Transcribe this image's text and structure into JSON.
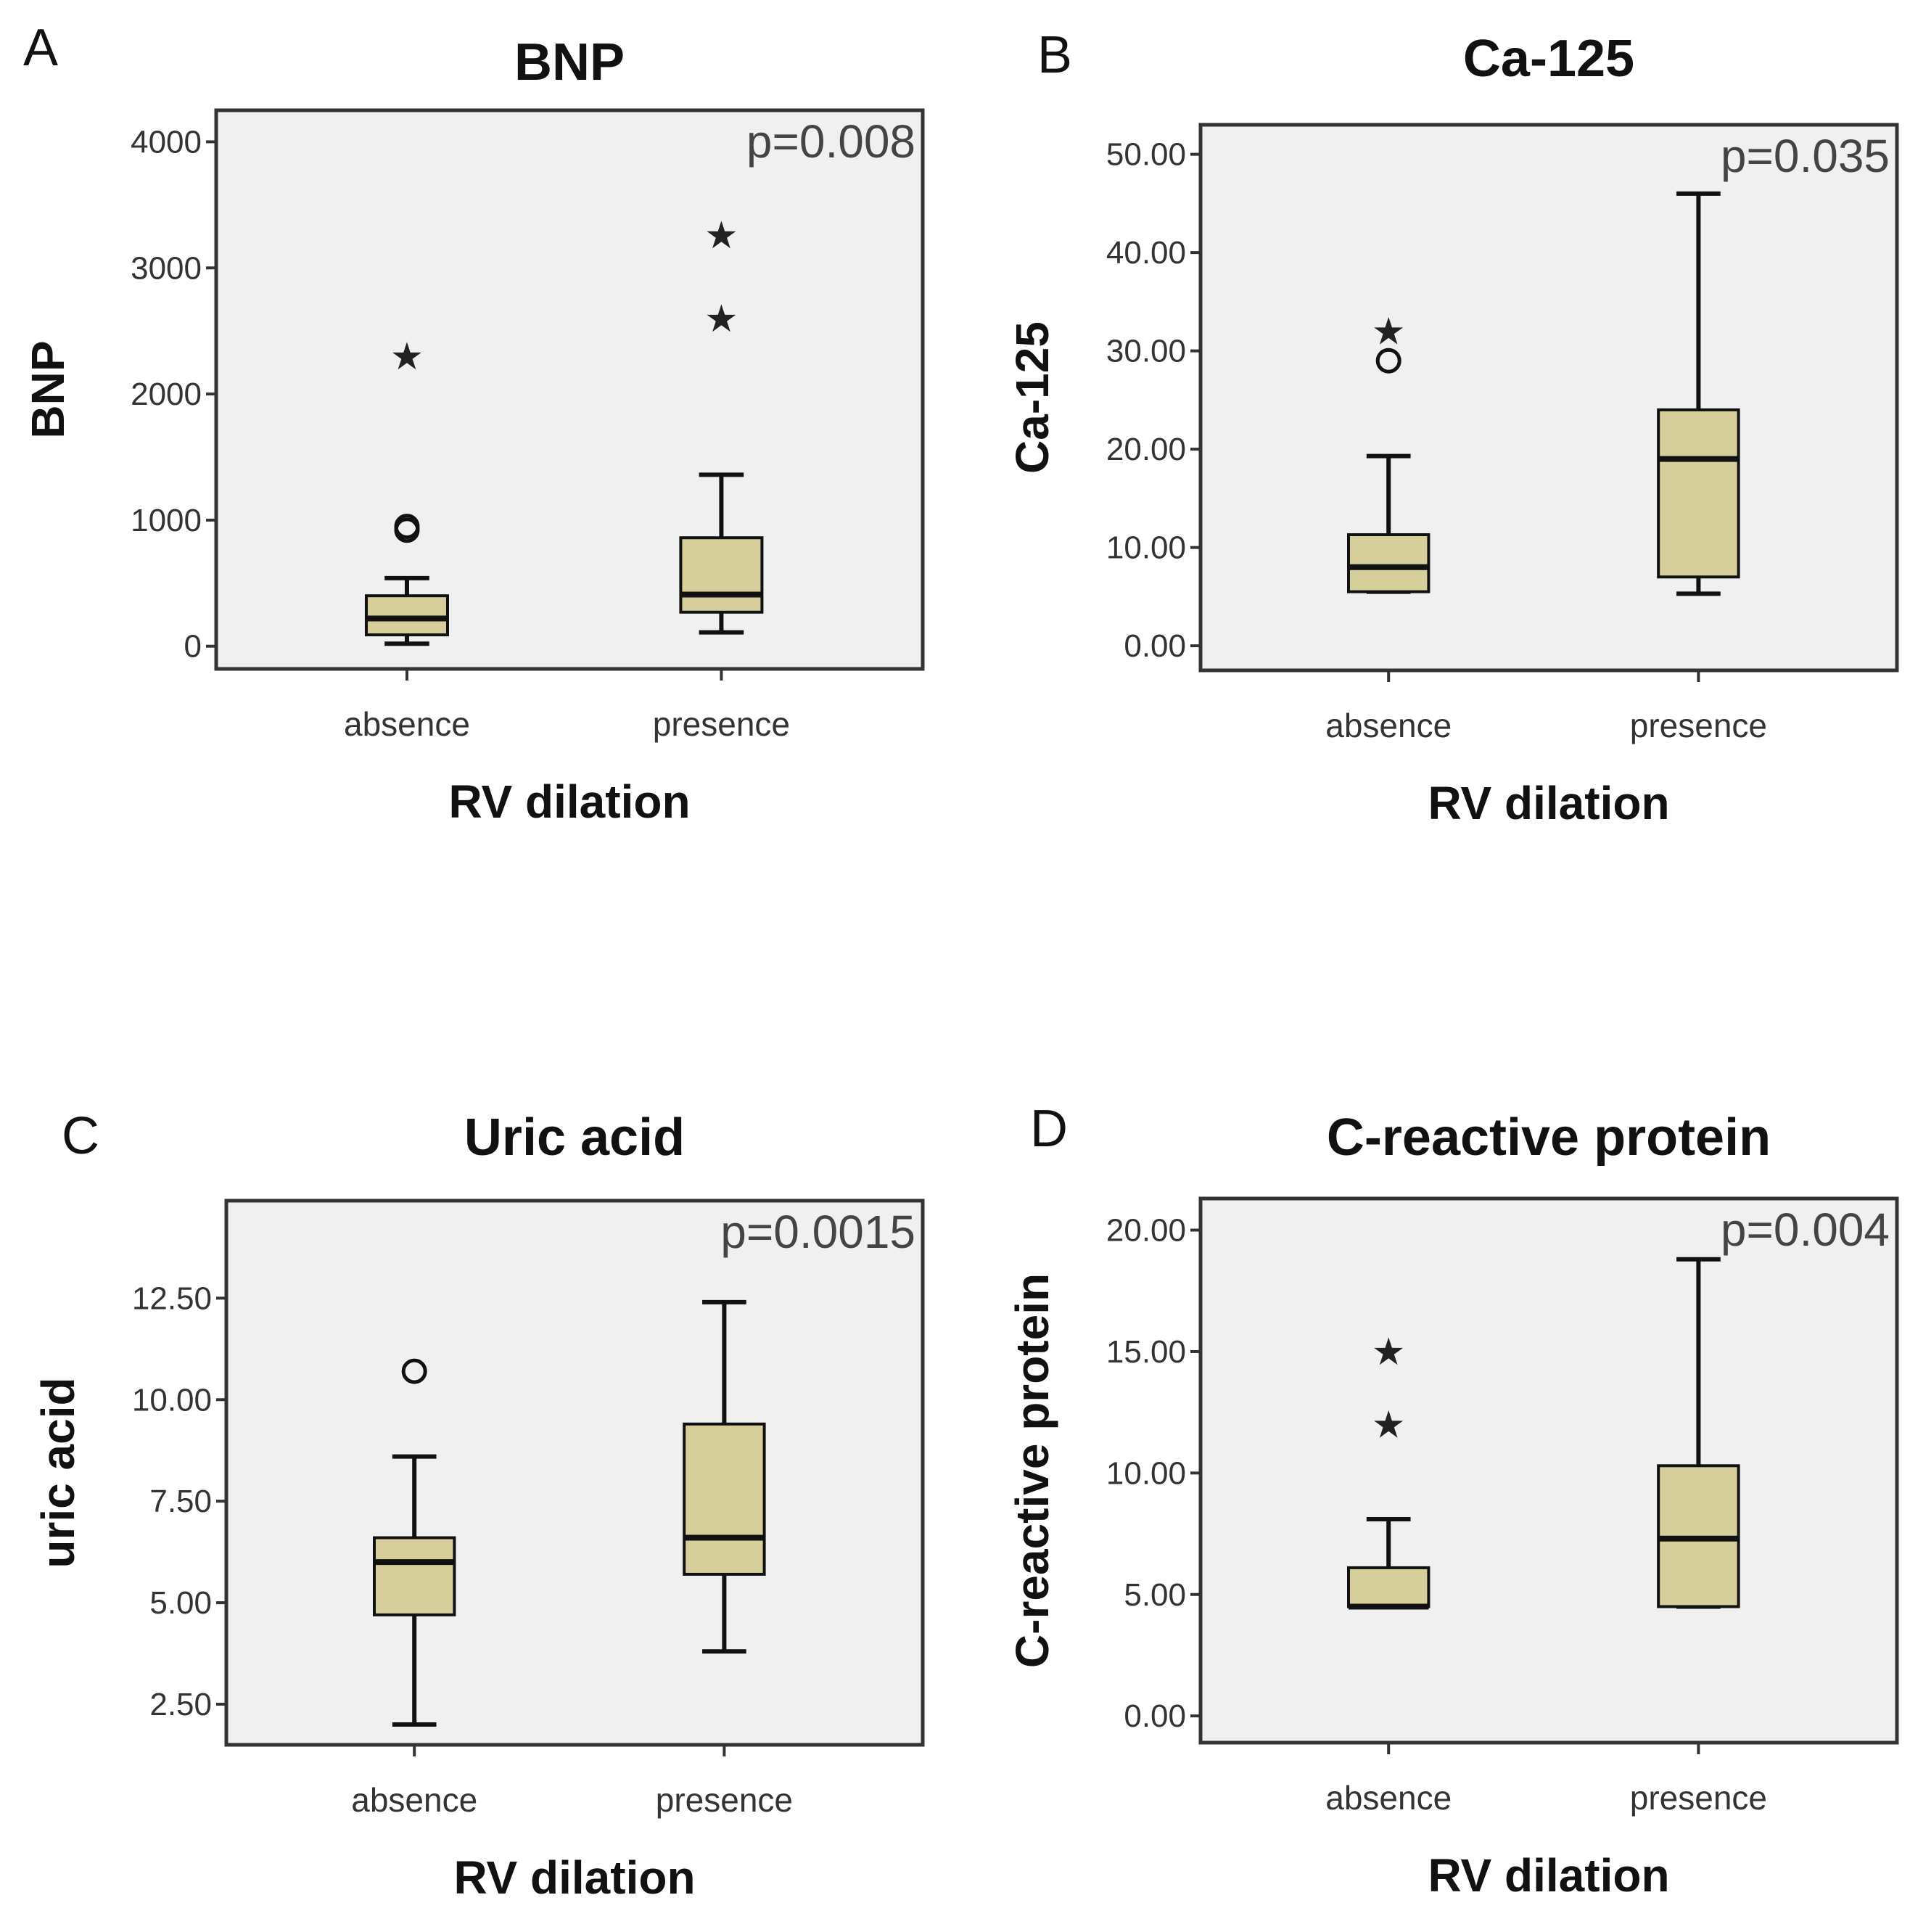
{
  "chart_data": [
    {
      "type": "boxplot",
      "panel": "A",
      "title": "BNP",
      "xlabel": "RV dilation",
      "ylabel": "BNP",
      "annotation": "p=0.008",
      "categories": [
        "absence",
        "presence"
      ],
      "ylim": [
        -180,
        4250
      ],
      "yticks": [
        0,
        1000,
        2000,
        3000,
        4000
      ],
      "ytick_labels": [
        "0",
        "1000",
        "2000",
        "3000",
        "4000"
      ],
      "boxes": [
        {
          "whisker_low": 20,
          "q1": 90,
          "median": 220,
          "q3": 400,
          "whisker_high": 540,
          "outliers": [
            {
              "value": 920,
              "marker": "circle"
            },
            {
              "value": 950,
              "marker": "circle"
            },
            {
              "value": 2300,
              "marker": "star"
            }
          ]
        },
        {
          "whisker_low": 110,
          "q1": 270,
          "median": 410,
          "q3": 860,
          "whisker_high": 1360,
          "outliers": [
            {
              "value": 2600,
              "marker": "star"
            },
            {
              "value": 3260,
              "marker": "star"
            }
          ]
        }
      ]
    },
    {
      "type": "boxplot",
      "panel": "B",
      "title": "Ca-125",
      "xlabel": "RV dilation",
      "ylabel": "Ca-125",
      "annotation": "p=0.035",
      "categories": [
        "absence",
        "presence"
      ],
      "ylim": [
        -2.5,
        53
      ],
      "yticks": [
        0,
        10,
        20,
        30,
        40,
        50
      ],
      "ytick_labels": [
        "0.00",
        "10.00",
        "20.00",
        "30.00",
        "40.00",
        "50.00"
      ],
      "boxes": [
        {
          "whisker_low": 5.5,
          "q1": 5.5,
          "median": 8.0,
          "q3": 11.3,
          "whisker_high": 19.3,
          "outliers": [
            {
              "value": 29.0,
              "marker": "circle"
            },
            {
              "value": 32.0,
              "marker": "star"
            }
          ]
        },
        {
          "whisker_low": 5.3,
          "q1": 7.0,
          "median": 19.0,
          "q3": 24.0,
          "whisker_high": 46.0,
          "outliers": []
        }
      ]
    },
    {
      "type": "boxplot",
      "panel": "C",
      "title": "Uric acid",
      "xlabel": "RV dilation",
      "ylabel": "uric acid",
      "annotation": "p=0.0015",
      "categories": [
        "absence",
        "presence"
      ],
      "ylim": [
        1.5,
        14.9
      ],
      "yticks": [
        2.5,
        5,
        7.5,
        10,
        12.5
      ],
      "ytick_labels": [
        "2.50",
        "5.00",
        "7.50",
        "10.00",
        "12.50"
      ],
      "boxes": [
        {
          "whisker_low": 2.0,
          "q1": 4.7,
          "median": 6.0,
          "q3": 6.6,
          "whisker_high": 8.6,
          "outliers": [
            {
              "value": 10.7,
              "marker": "circle"
            }
          ]
        },
        {
          "whisker_low": 3.8,
          "q1": 5.7,
          "median": 6.6,
          "q3": 9.4,
          "whisker_high": 12.4,
          "outliers": []
        }
      ]
    },
    {
      "type": "boxplot",
      "panel": "D",
      "title": "C-reactive protein",
      "xlabel": "RV dilation",
      "ylabel": "C-reactive protein",
      "annotation": "p=0.004",
      "categories": [
        "absence",
        "presence"
      ],
      "ylim": [
        -1.1,
        21.3
      ],
      "yticks": [
        0,
        5,
        10,
        15,
        20
      ],
      "ytick_labels": [
        "0.00",
        "5.00",
        "10.00",
        "15.00",
        "20.00"
      ],
      "boxes": [
        {
          "whisker_low": 4.5,
          "q1": 4.5,
          "median": 4.5,
          "q3": 6.1,
          "whisker_high": 8.1,
          "outliers": [
            {
              "value": 12.0,
              "marker": "star"
            },
            {
              "value": 15.0,
              "marker": "star"
            }
          ]
        },
        {
          "whisker_low": 4.5,
          "q1": 4.5,
          "median": 7.3,
          "q3": 10.3,
          "whisker_high": 18.8,
          "outliers": []
        }
      ]
    }
  ],
  "colors": {
    "box_fill": "#d6cf9c",
    "plot_bg": "#f0f0f0",
    "line": "#111111",
    "frame": "#333333"
  },
  "icons": {
    "star_glyph": "★"
  }
}
